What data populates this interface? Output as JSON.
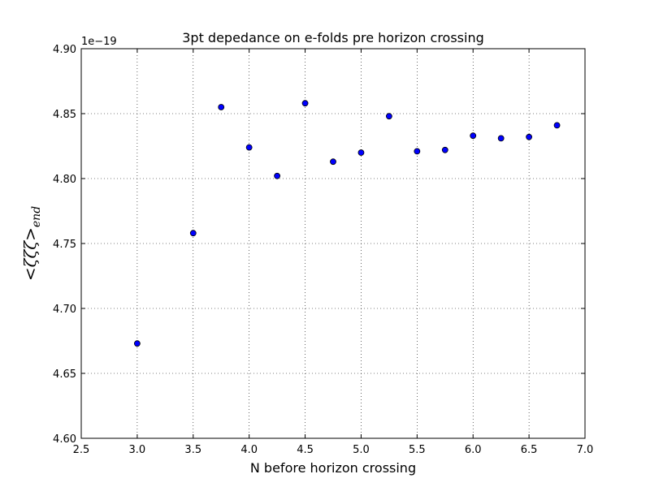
{
  "chart_data": {
    "type": "scatter",
    "title": "3pt depedance on e-folds pre horizon crossing",
    "xlabel": "N before horizon crossing",
    "ylabel": "<ζζζ>",
    "ylabel_sub": "end",
    "y_offset_label": "1e−19",
    "xlim": [
      2.5,
      7.0
    ],
    "ylim": [
      4.6,
      4.9
    ],
    "xticks": [
      "2.5",
      "3.0",
      "3.5",
      "4.0",
      "4.5",
      "5.0",
      "5.5",
      "6.0",
      "6.5",
      "7.0"
    ],
    "yticks": [
      "4.60",
      "4.65",
      "4.70",
      "4.75",
      "4.80",
      "4.85",
      "4.90"
    ],
    "grid": true,
    "marker_color": "#0000ff",
    "x": [
      3.0,
      3.5,
      3.75,
      4.0,
      4.25,
      4.5,
      4.75,
      5.0,
      5.25,
      5.5,
      5.75,
      6.0,
      6.25,
      6.5,
      6.75
    ],
    "y": [
      4.673,
      4.758,
      4.855,
      4.824,
      4.802,
      4.858,
      4.813,
      4.82,
      4.848,
      4.821,
      4.822,
      4.833,
      4.831,
      4.832,
      4.841
    ]
  }
}
